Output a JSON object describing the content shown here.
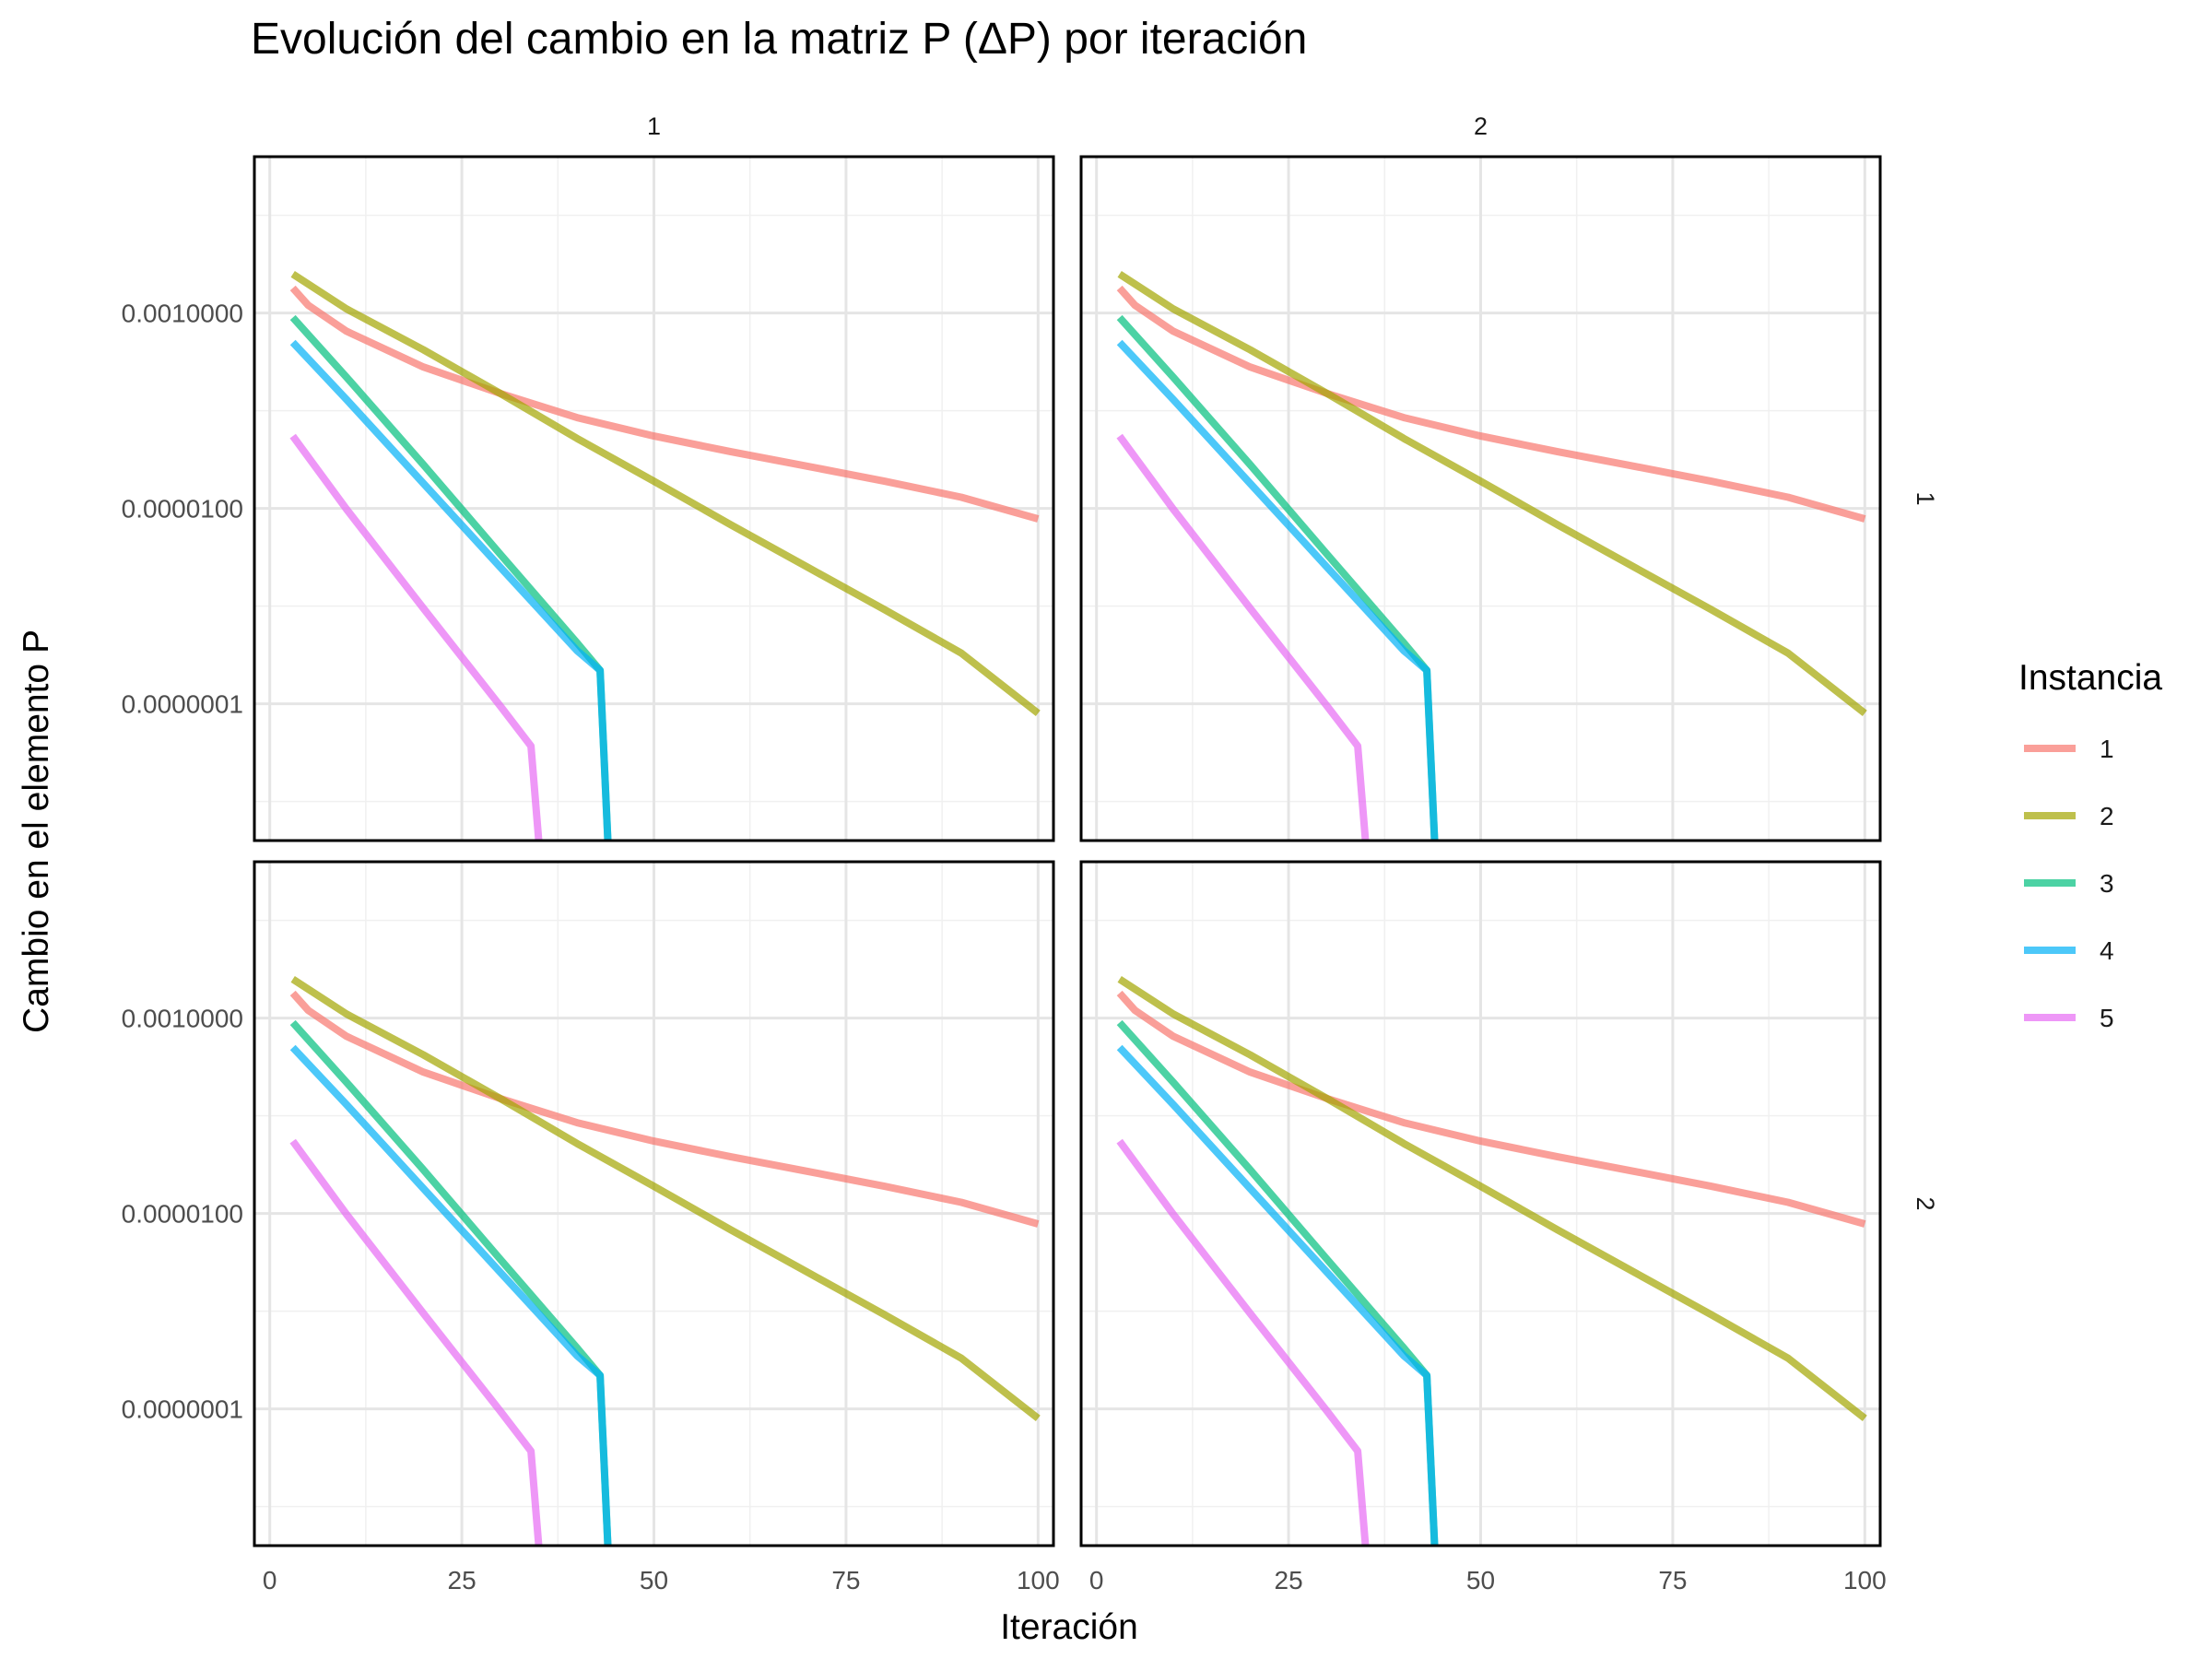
{
  "chart_data": {
    "type": "line",
    "title": "Evolución del cambio en la matriz P (ΔP) por iteración",
    "xlabel": "Iteración",
    "ylabel": "Cambio en el elemento P",
    "y_scale": "log10",
    "xlim": [
      -2,
      102
    ],
    "ylim_log10": [
      -8.4,
      -1.4
    ],
    "x_ticks": [
      0,
      25,
      50,
      75,
      100
    ],
    "x_tick_labels": [
      "0",
      "25",
      "50",
      "75",
      "100"
    ],
    "y_ticks_log10": [
      -3,
      -5,
      -7
    ],
    "y_tick_labels": [
      "0.0010000",
      "0.0000100",
      "0.0000001"
    ],
    "x_minor_gridlines": [
      12.5,
      37.5,
      62.5,
      87.5
    ],
    "y_minor_gridlines_log10": [
      -2,
      -4,
      -6,
      -8
    ],
    "grid": true,
    "facet_cols": [
      "1",
      "2"
    ],
    "facet_rows": [
      "1",
      "2"
    ],
    "legend": {
      "title": "Instancia",
      "position": "right",
      "entries": [
        "1",
        "2",
        "3",
        "4",
        "5"
      ]
    },
    "series": [
      {
        "name": "1",
        "color": "#F8766D",
        "points": [
          [
            3,
            0.0018
          ],
          [
            5,
            0.0012
          ],
          [
            10,
            0.00065
          ],
          [
            20,
            0.00028
          ],
          [
            30,
            0.00015
          ],
          [
            40,
            8.5e-05
          ],
          [
            50,
            5.5e-05
          ],
          [
            60,
            3.8e-05
          ],
          [
            70,
            2.7e-05
          ],
          [
            80,
            1.9e-05
          ],
          [
            90,
            1.3e-05
          ],
          [
            100,
            7.8e-06
          ]
        ]
      },
      {
        "name": "2",
        "color": "#A3A500",
        "points": [
          [
            3,
            0.0025
          ],
          [
            10,
            0.0011
          ],
          [
            20,
            0.00042
          ],
          [
            30,
            0.00015
          ],
          [
            40,
            5.2e-05
          ],
          [
            50,
            1.9e-05
          ],
          [
            60,
            6.8e-06
          ],
          [
            70,
            2.5e-06
          ],
          [
            80,
            9.2e-07
          ],
          [
            90,
            3.3e-07
          ],
          [
            100,
            8e-08
          ]
        ]
      },
      {
        "name": "3",
        "color": "#00BF7D",
        "points": [
          [
            3,
            0.0009
          ],
          [
            10,
            0.00022
          ],
          [
            20,
            2.8e-05
          ],
          [
            30,
            3.4e-06
          ],
          [
            40,
            4.2e-07
          ],
          [
            43,
            2.2e-07
          ],
          [
            44,
            4e-09
          ]
        ]
      },
      {
        "name": "4",
        "color": "#00B0F6",
        "points": [
          [
            3,
            0.0005
          ],
          [
            10,
            0.00013
          ],
          [
            20,
            1.8e-05
          ],
          [
            30,
            2.5e-06
          ],
          [
            40,
            3.5e-07
          ],
          [
            43,
            2.2e-07
          ],
          [
            44,
            4e-09
          ]
        ]
      },
      {
        "name": "5",
        "color": "#E76BF3",
        "points": [
          [
            3,
            5.5e-05
          ],
          [
            10,
            9.8e-06
          ],
          [
            20,
            9.5e-07
          ],
          [
            30,
            9.5e-08
          ],
          [
            34,
            3.7e-08
          ],
          [
            35,
            4e-09
          ]
        ]
      }
    ]
  }
}
